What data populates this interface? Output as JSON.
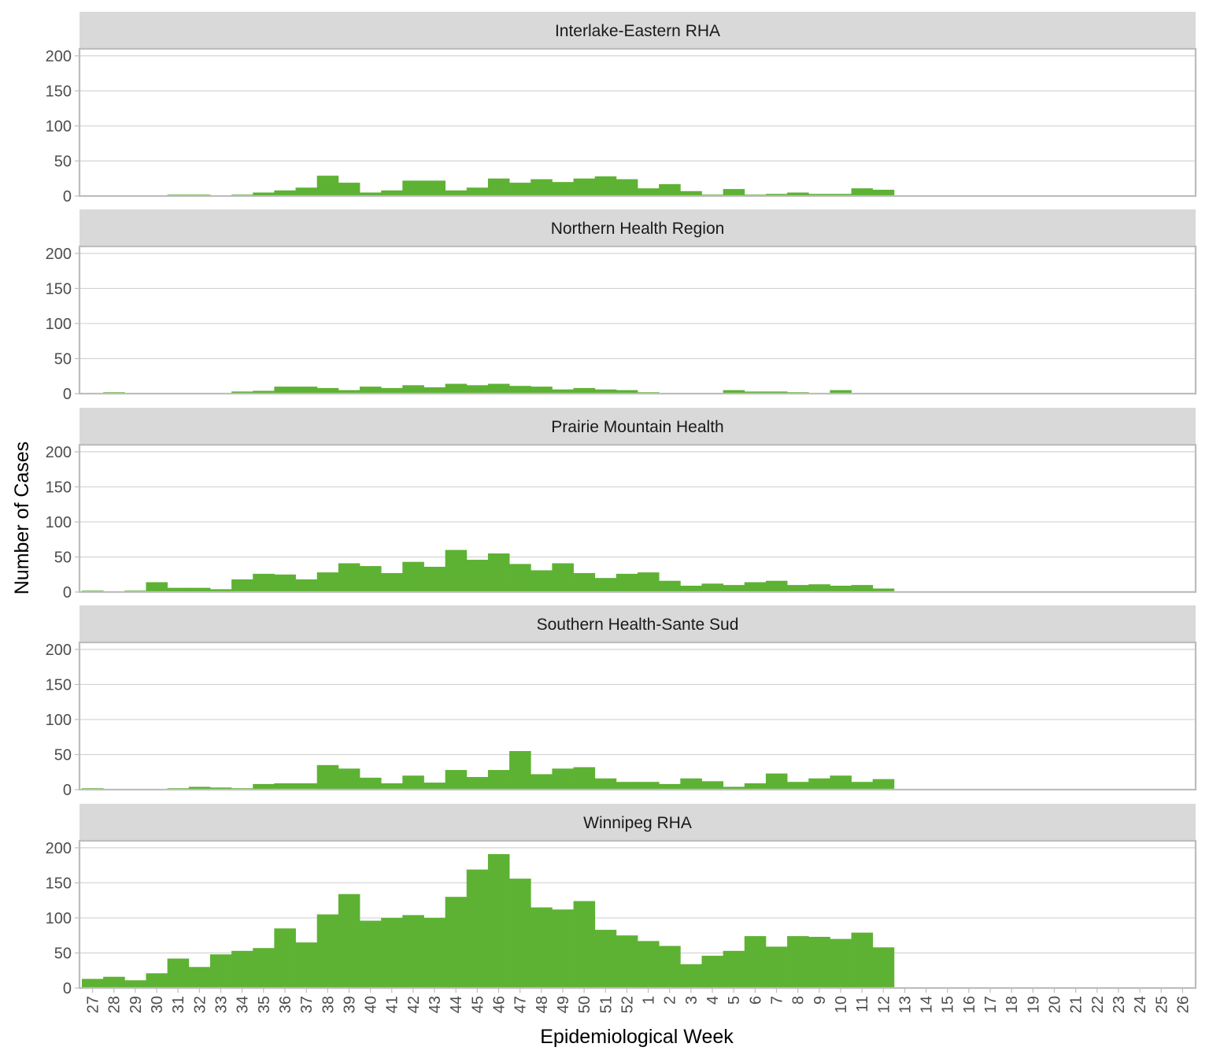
{
  "colors": {
    "bar": "#5db233",
    "strip_fill": "#d9d9d9",
    "panel_border": "#bdbdbd",
    "grid": "#d3d3d3",
    "tick_text": "#4d4d4d"
  },
  "chart_data": {
    "type": "bar",
    "facet_layout": "vertical",
    "xlabel": "Epidemiological Week",
    "ylabel": "Number of Cases",
    "ylim": [
      0,
      210
    ],
    "yticks": [
      0,
      50,
      100,
      150,
      200
    ],
    "grid": true,
    "categories": [
      "27",
      "28",
      "29",
      "30",
      "31",
      "32",
      "33",
      "34",
      "35",
      "36",
      "37",
      "38",
      "39",
      "40",
      "41",
      "42",
      "43",
      "44",
      "45",
      "46",
      "47",
      "48",
      "49",
      "50",
      "51",
      "52",
      "1",
      "2",
      "3",
      "4",
      "5",
      "6",
      "7",
      "8",
      "9",
      "10",
      "11",
      "12",
      "13",
      "14",
      "15",
      "16",
      "17",
      "18",
      "19",
      "20",
      "21",
      "22",
      "23",
      "24",
      "25",
      "26"
    ],
    "series": [
      {
        "name": "Interlake-Eastern RHA",
        "values": [
          0,
          0,
          0,
          1,
          2,
          2,
          0,
          2,
          5,
          8,
          12,
          29,
          19,
          5,
          8,
          22,
          22,
          8,
          12,
          25,
          19,
          24,
          20,
          25,
          28,
          24,
          11,
          17,
          7,
          2,
          10,
          2,
          3,
          5,
          3,
          3,
          11,
          9,
          null,
          null,
          null,
          null,
          null,
          null,
          null,
          null,
          null,
          null,
          null,
          null,
          null,
          null
        ]
      },
      {
        "name": "Northern Health Region",
        "values": [
          1,
          2,
          1,
          0,
          0,
          0,
          0,
          3,
          4,
          10,
          10,
          8,
          5,
          10,
          8,
          12,
          9,
          14,
          12,
          14,
          11,
          10,
          6,
          8,
          6,
          5,
          2,
          1,
          0,
          1,
          5,
          3,
          3,
          2,
          0,
          5,
          1,
          1,
          null,
          null,
          null,
          null,
          null,
          null,
          null,
          null,
          null,
          null,
          null,
          null,
          null,
          null
        ]
      },
      {
        "name": "Prairie Mountain Health",
        "values": [
          2,
          1,
          2,
          14,
          6,
          6,
          4,
          18,
          26,
          25,
          18,
          28,
          41,
          37,
          27,
          43,
          36,
          60,
          46,
          55,
          40,
          31,
          41,
          27,
          20,
          26,
          28,
          16,
          9,
          12,
          10,
          14,
          16,
          10,
          11,
          9,
          10,
          5,
          null,
          null,
          null,
          null,
          null,
          null,
          null,
          null,
          null,
          null,
          null,
          null,
          null,
          null
        ]
      },
      {
        "name": "Southern Health-Sante Sud",
        "values": [
          2,
          0,
          1,
          1,
          2,
          4,
          3,
          2,
          8,
          9,
          9,
          35,
          30,
          17,
          9,
          20,
          10,
          28,
          18,
          28,
          55,
          22,
          30,
          32,
          16,
          11,
          11,
          8,
          16,
          12,
          4,
          9,
          23,
          11,
          16,
          20,
          11,
          15,
          null,
          null,
          null,
          null,
          null,
          null,
          null,
          null,
          null,
          null,
          null,
          null,
          null,
          null
        ]
      },
      {
        "name": "Winnipeg RHA",
        "values": [
          13,
          16,
          11,
          21,
          42,
          30,
          48,
          53,
          57,
          85,
          65,
          105,
          134,
          96,
          100,
          104,
          100,
          130,
          169,
          191,
          156,
          115,
          112,
          124,
          83,
          75,
          67,
          60,
          34,
          46,
          53,
          74,
          59,
          74,
          73,
          70,
          79,
          58,
          null,
          null,
          null,
          null,
          null,
          null,
          null,
          null,
          null,
          null,
          null,
          null,
          null,
          null
        ]
      }
    ]
  }
}
